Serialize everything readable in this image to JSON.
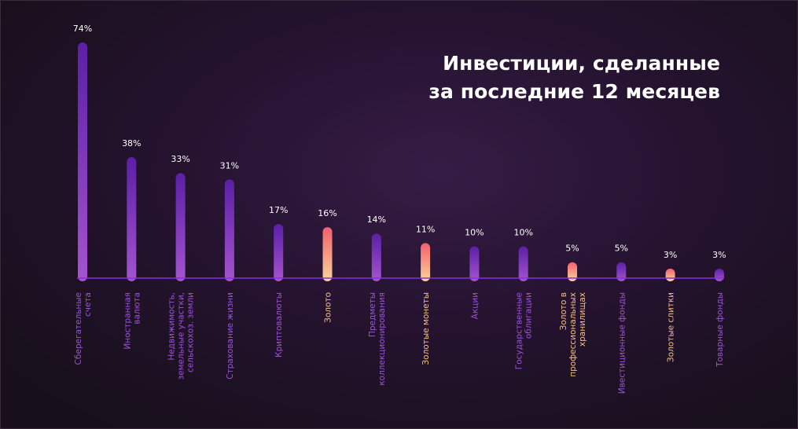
{
  "chart_data": {
    "type": "bar",
    "title_lines": [
      "Инвестиции, сделанные",
      "за последние 12 месяцев"
    ],
    "ylim": [
      0,
      74
    ],
    "value_suffix": "%",
    "bars": [
      {
        "label": [
          "Сберегательные",
          "счета"
        ],
        "value": 74,
        "value_label": "74%",
        "style": "purple"
      },
      {
        "label": [
          "Иностранная",
          "валюта"
        ],
        "value": 38,
        "value_label": "38%",
        "style": "purple"
      },
      {
        "label": [
          "Недвижимость,",
          "земельные участки,",
          "сельскохоз. земли"
        ],
        "value": 33,
        "value_label": "33%",
        "style": "purple"
      },
      {
        "label": [
          "Страхование жизни"
        ],
        "value": 31,
        "value_label": "31%",
        "style": "purple"
      },
      {
        "label": [
          "Криптовалюты"
        ],
        "value": 17,
        "value_label": "17%",
        "style": "purple"
      },
      {
        "label": [
          "Золото"
        ],
        "value": 16,
        "value_label": "16%",
        "style": "gold"
      },
      {
        "label": [
          "Предметы",
          "коллекционирования"
        ],
        "value": 14,
        "value_label": "14%",
        "style": "purple"
      },
      {
        "label": [
          "Золотые монеты"
        ],
        "value": 11,
        "value_label": "11%",
        "style": "gold"
      },
      {
        "label": [
          "Акции"
        ],
        "value": 10,
        "value_label": "10%",
        "style": "purple"
      },
      {
        "label": [
          "Государственные",
          "облигации"
        ],
        "value": 10,
        "value_label": "10%",
        "style": "purple"
      },
      {
        "label": [
          "Золото в",
          "профессиональных",
          "хранилищах"
        ],
        "value": 5,
        "value_label": "5%",
        "style": "gold"
      },
      {
        "label": [
          "Ивестиционные фонды"
        ],
        "value": 5,
        "value_label": "5%",
        "style": "purple"
      },
      {
        "label": [
          "Золотые слитки"
        ],
        "value": 3,
        "value_label": "3%",
        "style": "gold"
      },
      {
        "label": [
          "Товарные фонды"
        ],
        "value": 3,
        "value_label": "3%",
        "style": "purple"
      }
    ]
  },
  "colors": {
    "purple_top": "#5b1fa6",
    "purple_bottom": "#a454cf",
    "gold_top": "#f25f6e",
    "gold_bottom": "#f9d49a",
    "axis": "#8a2fd8",
    "value_text": "#ffffff",
    "purple_label": "#9a55d6",
    "gold_label": "#f4c27d"
  }
}
